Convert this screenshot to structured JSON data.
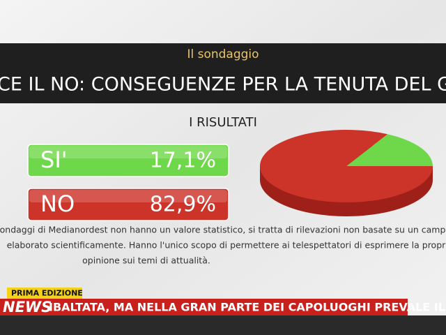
{
  "header": {
    "kicker": "Il sondaggio",
    "title": "CE IL NO: CONSEGUENZE PER LA TENUTA DEL GOVERN"
  },
  "results_title": "I RISULTATI",
  "chart_data": {
    "type": "pie",
    "categories": [
      "SI'",
      "NO"
    ],
    "values": [
      17.1,
      82.9
    ],
    "value_labels": [
      "17,1%",
      "82,9%"
    ],
    "colors": [
      "#6fd84a",
      "#cc3329"
    ]
  },
  "disclaimer": [
    "sondaggi di Medianordest non hanno un valore statistico, si tratta di rilevazioni non basate su un campi",
    "elaborato scientificamente. Hanno l'unico scopo di permettere ai telespettatori di esprimere la propria",
    "opinione sui temi di attualità."
  ],
  "ticker": {
    "edition": "PRIMA EDIZIONE",
    "brand": "NEWS",
    "headline": "IBALTATA, MA NELLA GRAN PARTE DEI CAPOLUOGHI PREVALE IL"
  }
}
